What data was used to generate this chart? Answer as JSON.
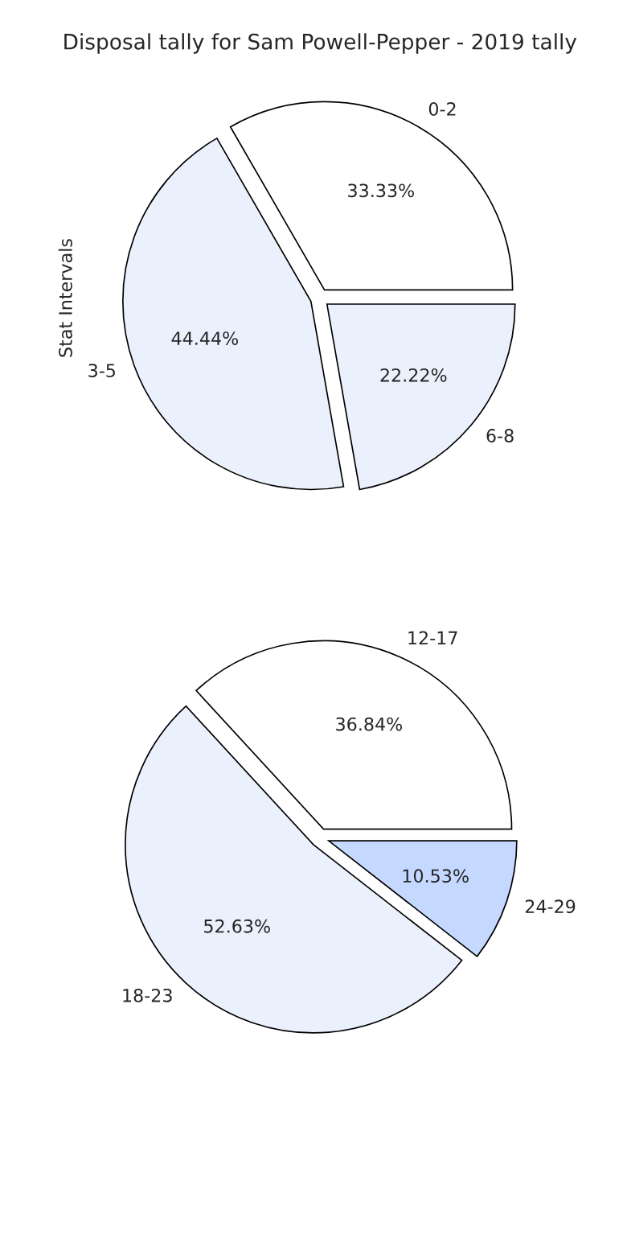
{
  "chart_data": [
    {
      "type": "pie",
      "title": "Disposal tally for Sam Powell-Pepper - 2019 tally",
      "ylabel": "Stat Intervals",
      "categories": [
        "0-2",
        "3-5",
        "6-8"
      ],
      "values": [
        33.33,
        44.44,
        22.22
      ],
      "value_labels": [
        "33.33%",
        "44.44%",
        "22.22%"
      ],
      "colors": [
        "#ffffff",
        "#eaf0fc",
        "#eaf0fc"
      ]
    },
    {
      "type": "pie",
      "categories": [
        "12-17",
        "18-23",
        "24-29"
      ],
      "values": [
        36.84,
        52.63,
        10.53
      ],
      "value_labels": [
        "36.84%",
        "52.63%",
        "10.53%"
      ],
      "colors": [
        "#ffffff",
        "#eaf0fc",
        "#c5d8ff"
      ]
    }
  ]
}
